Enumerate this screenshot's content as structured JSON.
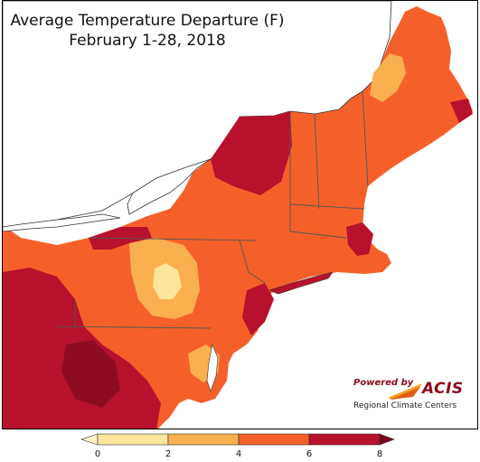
{
  "title": {
    "line1": "Average Temperature Departure (F)",
    "line2": "February 1-28, 2018"
  },
  "logo": {
    "powered_by": "Powered by",
    "name": "ACIS",
    "subtitle": "Regional Climate Centers"
  },
  "legend": {
    "ticks": [
      "0",
      "2",
      "4",
      "6",
      "8"
    ],
    "bins": [
      {
        "range": "0-2",
        "color": "#fde59b"
      },
      {
        "range": "2-4",
        "color": "#fbb04f"
      },
      {
        "range": "4-6",
        "color": "#f5602a"
      },
      {
        "range": "6-8",
        "color": "#b8112d"
      }
    ],
    "low_arrow_color": "#fff4c8",
    "high_arrow_color": "#7a0620"
  },
  "map_colors": {
    "water": "#ffffff",
    "lake": "#ffffff",
    "base": "#f5602a",
    "warm": "#fbb04f",
    "cool": "#fde59b",
    "hot": "#b8112d",
    "hottest": "#8e0c22",
    "border": "#555555"
  }
}
